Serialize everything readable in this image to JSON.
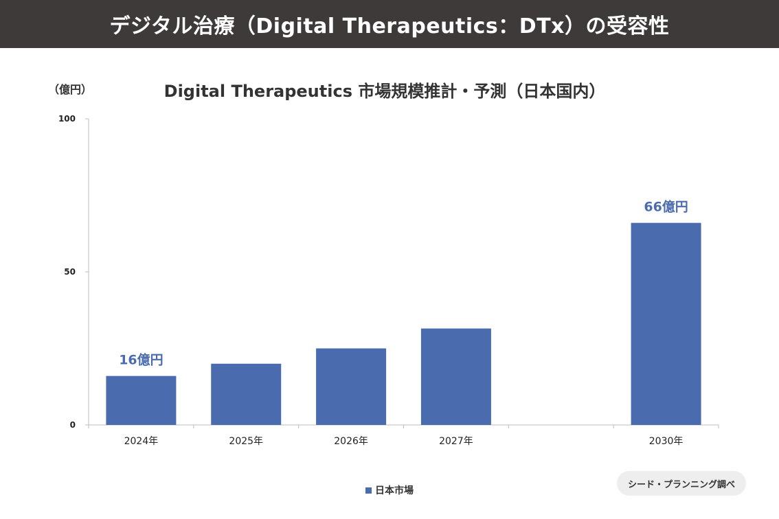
{
  "header": {
    "title": "デジタル治療（Digital Therapeutics：DTx）の受容性"
  },
  "chart_data": {
    "type": "bar",
    "title": "Digital Therapeutics 市場規模推計・予測（日本国内）",
    "ylabel": "（億円）",
    "xlabel": "",
    "ylim": [
      0,
      100
    ],
    "yticks": [
      0,
      50,
      100
    ],
    "categories": [
      "2024年",
      "2025年",
      "2026年",
      "2027年",
      "",
      "2030年"
    ],
    "series": [
      {
        "name": "日本市場",
        "color": "#4a6caf",
        "values": [
          16,
          20,
          25,
          31.5,
          null,
          66
        ]
      }
    ],
    "data_labels": {
      "0": "16億円",
      "5": "66億円"
    },
    "grid": false,
    "legend_position": "bottom"
  },
  "source": {
    "label": "シード・プランニング調べ"
  }
}
